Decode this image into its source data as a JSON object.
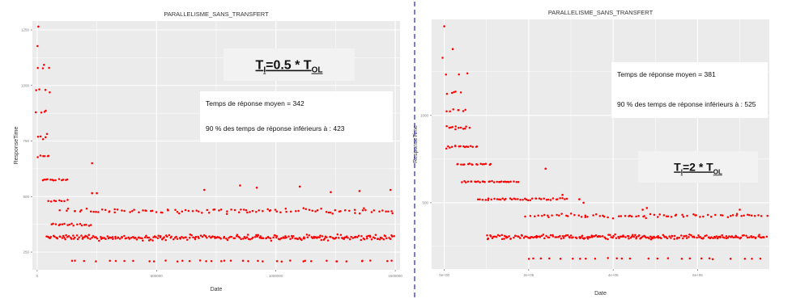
{
  "colors": {
    "panel": "#ebebeb",
    "grid": "#ffffff",
    "point": "#ff0000",
    "divider": "#5b5bcf",
    "box": "#ffffff",
    "ratio_box": "#f2f2f2"
  },
  "chart_data": [
    {
      "type": "scatter",
      "title": "PARALLELISME_SANS_TRANSFERT",
      "xlabel": "Date",
      "ylabel": "ResponseTime",
      "grid": true,
      "legend": "none",
      "x_ticks": [
        "0",
        "500000",
        "1000000",
        "1500000"
      ],
      "y_ticks": [
        "250",
        "500",
        "750",
        "1000",
        "1250"
      ],
      "xlim": [
        -20000,
        1520000
      ],
      "ylim": [
        170,
        1290
      ],
      "stats": {
        "mean_label": "Temps de réponse moyen = 342",
        "p90_label": "90  % des temps de réponse inférieurs à : 423"
      },
      "ratio": {
        "lhs": "T",
        "lhs_sub": "I",
        "rhs": "=0.5 * T",
        "rhs_sub": "OL"
      },
      "bands": [
        {
          "y": 315,
          "x_start": 40000,
          "x_end": 1500000,
          "spread": 16,
          "density": "very high"
        },
        {
          "y": 435,
          "x_start": 100000,
          "x_end": 1500000,
          "spread": 16,
          "density": "medium"
        },
        {
          "y": 210,
          "x_start": 140000,
          "x_end": 1500000,
          "spread": 4,
          "density": "sparse"
        },
        {
          "y": 375,
          "x_start": 60000,
          "x_end": 230000,
          "spread": 10,
          "density": "high"
        },
        {
          "y": 480,
          "x_start": 50000,
          "x_end": 130000,
          "spread": 6,
          "density": "high"
        },
        {
          "y": 575,
          "x_start": 20000,
          "x_end": 130000,
          "spread": 6,
          "density": "high"
        },
        {
          "y": 680,
          "x_start": 5000,
          "x_end": 55000,
          "spread": 12,
          "density": "high"
        },
        {
          "y": 760,
          "x_start": 5000,
          "x_end": 50000,
          "spread": 30,
          "density": "high"
        },
        {
          "y": 880,
          "x_start": 0,
          "x_end": 50000,
          "spread": 20,
          "density": "medium"
        },
        {
          "y": 980,
          "x_start": 0,
          "x_end": 50000,
          "spread": 20,
          "density": "medium"
        },
        {
          "y": 1080,
          "x_start": 0,
          "x_end": 50000,
          "spread": 20,
          "density": "medium"
        },
        {
          "y": 1175,
          "x_start": 0,
          "x_end": 20000,
          "spread": 10,
          "density": "sparse"
        }
      ],
      "outliers": [
        [
          5000,
          1265
        ],
        [
          230000,
          650
        ],
        [
          230000,
          515
        ],
        [
          250000,
          515
        ],
        [
          700000,
          530
        ],
        [
          850000,
          550
        ],
        [
          920000,
          540
        ],
        [
          1100000,
          545
        ],
        [
          1230000,
          520
        ],
        [
          1350000,
          525
        ],
        [
          1480000,
          530
        ]
      ]
    },
    {
      "type": "scatter",
      "title": "PARALLELISME_SANS_TRANSFERT",
      "xlabel": "Date",
      "ylabel": "ResponseTime",
      "grid": true,
      "legend": "none",
      "x_ticks": [
        "0e+00",
        "2e+05",
        "4e+05",
        "6e+05"
      ],
      "y_ticks": [
        "500",
        "1000"
      ],
      "xlim": [
        -30000,
        770000
      ],
      "ylim": [
        120,
        1550
      ],
      "stats": {
        "mean_label": "Temps de réponse moyen = 381",
        "p90_label": "90  % des temps de réponse inférieurs à : 525"
      },
      "ratio": {
        "lhs": "T",
        "lhs_sub": "I",
        "rhs": "=2 * T",
        "rhs_sub": "OL"
      },
      "bands": [
        {
          "y": 305,
          "x_start": 100000,
          "x_end": 765000,
          "spread": 18,
          "density": "very high"
        },
        {
          "y": 425,
          "x_start": 195000,
          "x_end": 765000,
          "spread": 16,
          "density": "medium"
        },
        {
          "y": 180,
          "x_start": 195000,
          "x_end": 765000,
          "spread": 4,
          "density": "sparse"
        },
        {
          "y": 520,
          "x_start": 80000,
          "x_end": 290000,
          "spread": 10,
          "density": "high"
        },
        {
          "y": 620,
          "x_start": 40000,
          "x_end": 175000,
          "spread": 6,
          "density": "high"
        },
        {
          "y": 720,
          "x_start": 30000,
          "x_end": 110000,
          "spread": 6,
          "density": "high"
        },
        {
          "y": 820,
          "x_start": 5000,
          "x_end": 80000,
          "spread": 12,
          "density": "high"
        },
        {
          "y": 930,
          "x_start": 5000,
          "x_end": 60000,
          "spread": 20,
          "density": "high"
        },
        {
          "y": 1030,
          "x_start": 5000,
          "x_end": 50000,
          "spread": 16,
          "density": "medium"
        },
        {
          "y": 1130,
          "x_start": 5000,
          "x_end": 40000,
          "spread": 16,
          "density": "medium"
        },
        {
          "y": 1240,
          "x_start": 5000,
          "x_end": 60000,
          "spread": 12,
          "density": "sparse"
        },
        {
          "y": 1330,
          "x_start": 5000,
          "x_end": 15000,
          "spread": 10,
          "density": "sparse"
        }
      ],
      "outliers": [
        [
          0,
          1510
        ],
        [
          20000,
          1380
        ],
        [
          240000,
          695
        ],
        [
          280000,
          545
        ],
        [
          320000,
          520
        ],
        [
          330000,
          500
        ],
        [
          470000,
          460
        ],
        [
          480000,
          470
        ],
        [
          700000,
          460
        ]
      ]
    }
  ]
}
